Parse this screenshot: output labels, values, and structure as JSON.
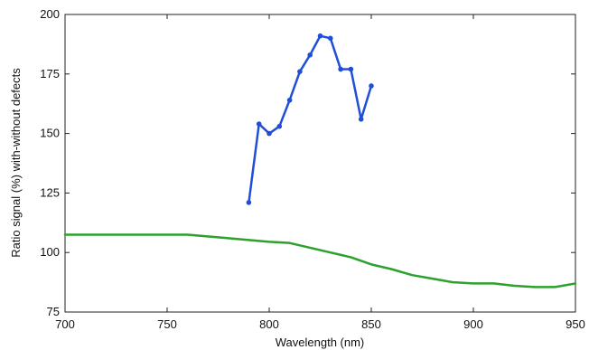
{
  "chart_data": {
    "type": "line",
    "title": "",
    "xlabel": "Wavelength (nm)",
    "ylabel": "Ratio signal (%) with-without defects",
    "xlim": [
      700,
      950
    ],
    "ylim": [
      75,
      200
    ],
    "xticks": [
      700,
      750,
      800,
      850,
      900,
      950
    ],
    "yticks": [
      75,
      100,
      125,
      150,
      175,
      200
    ],
    "x_tick_labels": [
      "700",
      "750",
      "800",
      "850",
      "900",
      "950"
    ],
    "y_tick_labels": [
      "75",
      "100",
      "125",
      "150",
      "175",
      "200"
    ],
    "grid": false,
    "legend": false,
    "series": [
      {
        "color": "#1f4fd8",
        "markers": true,
        "x": [
          790,
          795,
          800,
          805,
          810,
          815,
          820,
          825,
          830,
          835,
          840,
          845,
          850
        ],
        "y": [
          121,
          154,
          150,
          153,
          164,
          176,
          183,
          191,
          190,
          177,
          177,
          156,
          170
        ]
      },
      {
        "color": "#2ca12c",
        "markers": false,
        "x": [
          700,
          720,
          740,
          760,
          780,
          800,
          810,
          820,
          830,
          840,
          850,
          860,
          870,
          880,
          890,
          900,
          910,
          920,
          930,
          940,
          950
        ],
        "y": [
          107.5,
          107.5,
          107.5,
          107.5,
          106,
          104.5,
          104,
          102,
          100,
          98,
          95,
          93,
          90.5,
          89,
          87.5,
          87,
          87,
          86,
          85.5,
          85.5,
          87
        ]
      }
    ]
  }
}
